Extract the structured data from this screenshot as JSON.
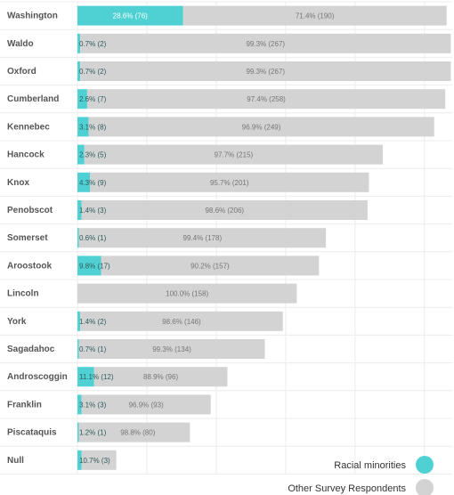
{
  "chart_data": {
    "type": "bar",
    "orientation": "horizontal",
    "stacked": true,
    "categories": [
      "Washington",
      "Waldo",
      "Oxford",
      "Cumberland",
      "Kennebec",
      "Hancock",
      "Knox",
      "Penobscot",
      "Somerset",
      "Aroostook",
      "Lincoln",
      "York",
      "Sagadahoc",
      "Androscoggin",
      "Franklin",
      "Piscataquis",
      "Null"
    ],
    "series": [
      {
        "name": "Racial minorities",
        "color": "#4fd1d4",
        "counts": [
          76,
          2,
          2,
          7,
          8,
          5,
          9,
          3,
          1,
          17,
          0,
          2,
          1,
          12,
          3,
          1,
          3
        ],
        "labels": [
          "28.6% (76)",
          "0.7% (2)",
          "0.7% (2)",
          "2.6% (7)",
          "3.1% (8)",
          "2.3% (5)",
          "4.3% (9)",
          "1.4% (3)",
          "0.6% (1)",
          "9.8% (17)",
          "",
          "1.4% (2)",
          "0.7% (1)",
          "11.1% (12)",
          "3.1% (3)",
          "1.2% (1)",
          "10.7% (3)"
        ]
      },
      {
        "name": "Other Survey Respondents",
        "color": "#d3d3d3",
        "counts": [
          190,
          267,
          267,
          258,
          249,
          215,
          201,
          206,
          178,
          157,
          158,
          146,
          134,
          96,
          93,
          80,
          25
        ],
        "labels": [
          "71.4% (190)",
          "99.3% (267)",
          "99.3% (267)",
          "97.4% (258)",
          "96.9% (249)",
          "97.7% (215)",
          "95.7% (201)",
          "98.6% (206)",
          "99.4% (178)",
          "90.2% (157)",
          "100.0% (158)",
          "98.6% (146)",
          "99.3% (134)",
          "88.9% (96)",
          "96.9% (93)",
          "98.8% (80)",
          ""
        ]
      }
    ],
    "xlim": [
      0,
      270
    ],
    "grid": true,
    "legend_position": "bottom-right"
  }
}
